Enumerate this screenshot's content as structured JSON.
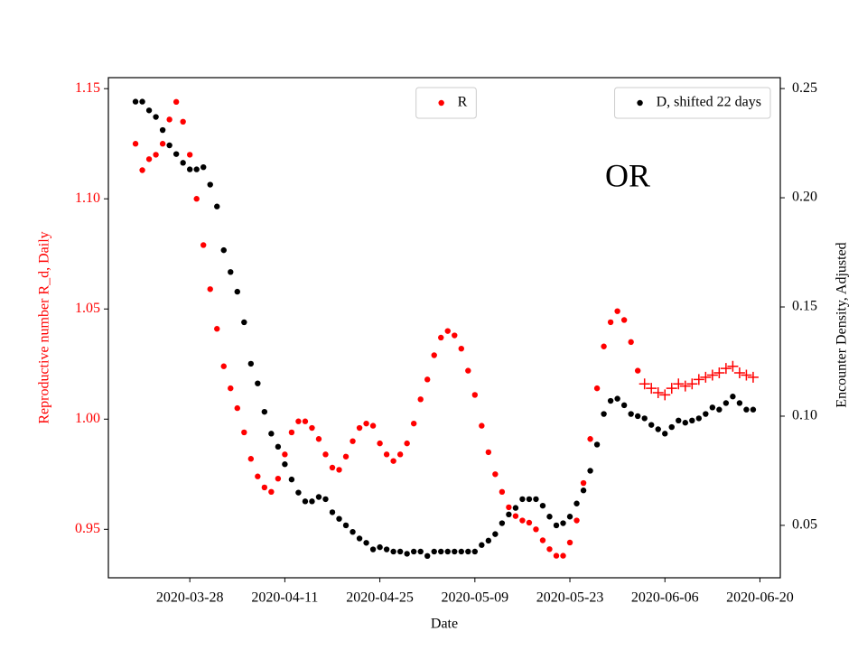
{
  "chart_data": {
    "type": "scatter",
    "annotation": "OR",
    "xlabel": "Date",
    "ylabel": "Reproductive number R_d, Daily",
    "y2label": "Encounter Density, Adjusted",
    "ylabel_color": "#ff0000",
    "x": [
      "2020-03-20",
      "2020-03-21",
      "2020-03-22",
      "2020-03-23",
      "2020-03-24",
      "2020-03-25",
      "2020-03-26",
      "2020-03-27",
      "2020-03-28",
      "2020-03-29",
      "2020-03-30",
      "2020-03-31",
      "2020-04-01",
      "2020-04-02",
      "2020-04-03",
      "2020-04-04",
      "2020-04-05",
      "2020-04-06",
      "2020-04-07",
      "2020-04-08",
      "2020-04-09",
      "2020-04-10",
      "2020-04-11",
      "2020-04-12",
      "2020-04-13",
      "2020-04-14",
      "2020-04-15",
      "2020-04-16",
      "2020-04-17",
      "2020-04-18",
      "2020-04-19",
      "2020-04-20",
      "2020-04-21",
      "2020-04-22",
      "2020-04-23",
      "2020-04-24",
      "2020-04-25",
      "2020-04-26",
      "2020-04-27",
      "2020-04-28",
      "2020-04-29",
      "2020-04-30",
      "2020-05-01",
      "2020-05-02",
      "2020-05-03",
      "2020-05-04",
      "2020-05-05",
      "2020-05-06",
      "2020-05-07",
      "2020-05-08",
      "2020-05-09",
      "2020-05-10",
      "2020-05-11",
      "2020-05-12",
      "2020-05-13",
      "2020-05-14",
      "2020-05-15",
      "2020-05-16",
      "2020-05-17",
      "2020-05-18",
      "2020-05-19",
      "2020-05-20",
      "2020-05-21",
      "2020-05-22",
      "2020-05-23",
      "2020-05-24",
      "2020-05-25",
      "2020-05-26",
      "2020-05-27",
      "2020-05-28",
      "2020-05-29",
      "2020-05-30",
      "2020-05-31",
      "2020-06-01",
      "2020-06-02",
      "2020-06-03",
      "2020-06-04",
      "2020-06-05",
      "2020-06-06",
      "2020-06-07",
      "2020-06-08",
      "2020-06-09",
      "2020-06-10",
      "2020-06-11",
      "2020-06-12",
      "2020-06-13",
      "2020-06-14",
      "2020-06-15",
      "2020-06-16",
      "2020-06-17",
      "2020-06-18",
      "2020-06-19"
    ],
    "series": [
      {
        "name": "R",
        "color": "#ff0000",
        "marker": "dot",
        "legend_loc": "upper center",
        "values": [
          1.125,
          1.113,
          1.118,
          1.12,
          1.125,
          1.136,
          1.144,
          1.135,
          1.12,
          1.1,
          1.079,
          1.059,
          1.041,
          1.024,
          1.014,
          1.005,
          0.994,
          0.982,
          0.974,
          0.969,
          0.967,
          0.973,
          0.984,
          0.994,
          0.999,
          0.999,
          0.996,
          0.991,
          0.984,
          0.978,
          0.977,
          0.983,
          0.99,
          0.996,
          0.998,
          0.997,
          0.989,
          0.984,
          0.981,
          0.984,
          0.989,
          0.998,
          1.009,
          1.018,
          1.029,
          1.037,
          1.04,
          1.038,
          1.032,
          1.022,
          1.011,
          0.997,
          0.985,
          0.975,
          0.967,
          0.96,
          0.956,
          0.954,
          0.953,
          0.95,
          0.945,
          0.941,
          0.938,
          0.938,
          0.944,
          0.954,
          0.971,
          0.991,
          1.014,
          1.033,
          1.044,
          1.049,
          1.045,
          1.035,
          1.022,
          null,
          null,
          null,
          null,
          null,
          null,
          null,
          null,
          null,
          null,
          null,
          null,
          null,
          null,
          null,
          null,
          null
        ]
      },
      {
        "color": "#ff0000",
        "marker": "plus",
        "values": [
          null,
          null,
          null,
          null,
          null,
          null,
          null,
          null,
          null,
          null,
          null,
          null,
          null,
          null,
          null,
          null,
          null,
          null,
          null,
          null,
          null,
          null,
          null,
          null,
          null,
          null,
          null,
          null,
          null,
          null,
          null,
          null,
          null,
          null,
          null,
          null,
          null,
          null,
          null,
          null,
          null,
          null,
          null,
          null,
          null,
          null,
          null,
          null,
          null,
          null,
          null,
          null,
          null,
          null,
          null,
          null,
          null,
          null,
          null,
          null,
          null,
          null,
          null,
          null,
          null,
          null,
          null,
          null,
          null,
          null,
          null,
          null,
          null,
          null,
          null,
          1.016,
          1.014,
          1.012,
          1.011,
          1.014,
          1.016,
          1.015,
          1.016,
          1.018,
          1.019,
          1.02,
          1.021,
          1.023,
          1.024,
          1.021,
          1.02,
          1.019
        ]
      },
      {
        "name": "D, shifted 22 days",
        "color": "#000000",
        "marker": "dot",
        "axis": "y2",
        "legend_loc": "upper right",
        "values": [
          0.244,
          0.244,
          0.24,
          0.237,
          0.231,
          0.224,
          0.22,
          0.216,
          0.213,
          0.213,
          0.214,
          0.206,
          0.196,
          0.176,
          0.166,
          0.157,
          0.143,
          0.124,
          0.115,
          0.102,
          0.092,
          0.086,
          0.078,
          0.071,
          0.065,
          0.061,
          0.061,
          0.063,
          0.062,
          0.056,
          0.053,
          0.05,
          0.047,
          0.044,
          0.042,
          0.039,
          0.04,
          0.039,
          0.038,
          0.038,
          0.037,
          0.038,
          0.038,
          0.036,
          0.038,
          0.038,
          0.038,
          0.038,
          0.038,
          0.038,
          0.038,
          0.041,
          0.043,
          0.046,
          0.051,
          0.055,
          0.058,
          0.062,
          0.062,
          0.062,
          0.059,
          0.054,
          0.05,
          0.051,
          0.054,
          0.06,
          0.066,
          0.075,
          0.087,
          0.101,
          0.107,
          0.108,
          0.105,
          0.101,
          0.1,
          0.099,
          0.096,
          0.094,
          0.092,
          0.095,
          0.098,
          0.097,
          0.098,
          0.099,
          0.101,
          0.104,
          0.103,
          0.106,
          0.109,
          0.106,
          0.103,
          0.103
        ]
      }
    ],
    "xlim": [
      "2020-03-16",
      "2020-06-23"
    ],
    "xticks": [
      "2020-03-28",
      "2020-04-11",
      "2020-04-25",
      "2020-05-09",
      "2020-05-23",
      "2020-06-06",
      "2020-06-20"
    ],
    "ylim": [
      0.928,
      1.155
    ],
    "yticks": [
      0.95,
      {
        "value": 1,
        "label": "1.00"
      },
      1.05,
      {
        "value": 1.1,
        "label": "1.10"
      },
      1.15
    ],
    "y2lim": [
      0.026,
      0.255
    ],
    "y2ticks": [
      0.05,
      {
        "value": 0.1,
        "label": "0.10"
      },
      0.15,
      {
        "value": 0.2,
        "label": "0.20"
      },
      0.25
    ]
  }
}
